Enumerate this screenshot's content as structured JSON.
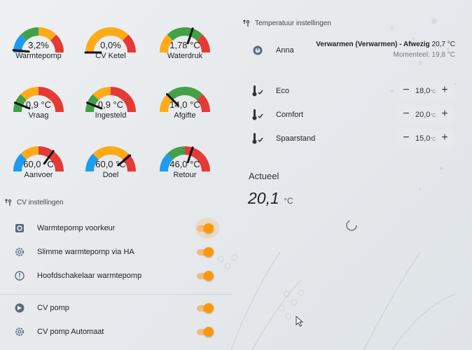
{
  "colors": {
    "green": "#43a047",
    "orange": "#ffab19",
    "red": "#e53935",
    "blue": "#1e9bef",
    "accent": "#ff9800"
  },
  "gauges": [
    {
      "value": "3,2%",
      "label": "Warmtepomp",
      "level": 0.03,
      "segments": [
        "blue",
        "green",
        "orange",
        "red"
      ]
    },
    {
      "value": "0,0%",
      "label": "CV Ketel",
      "level": 0.0,
      "segments": [
        "orange",
        "orange",
        "orange",
        "red"
      ]
    },
    {
      "value": "1,78 °C",
      "label": "Waterdruk",
      "level": 0.6,
      "segments": [
        "orange",
        "green",
        "green",
        "red"
      ]
    },
    {
      "value": "0,9 °C",
      "label": "Vraag",
      "level": 0.12,
      "segments": [
        "green",
        "orange",
        "red",
        "red"
      ]
    },
    {
      "value": "0,9 °C",
      "label": "Ingesteld",
      "level": 0.12,
      "segments": [
        "green",
        "orange",
        "red",
        "red"
      ]
    },
    {
      "value": "14,0 °C",
      "label": "Afgifte",
      "level": 0.25,
      "segments": [
        "orange",
        "green",
        "green",
        "red"
      ]
    },
    {
      "value": "60,0 °C",
      "label": "Aanvoer",
      "level": 0.7,
      "segments": [
        "blue",
        "orange",
        "red",
        "red"
      ]
    },
    {
      "value": "60,0 °C",
      "label": "Doel",
      "level": 0.78,
      "segments": [
        "blue",
        "orange",
        "orange",
        "red"
      ]
    },
    {
      "value": "46,0 °C",
      "label": "Retour",
      "level": 0.6,
      "segments": [
        "blue",
        "green",
        "red",
        "red"
      ]
    }
  ],
  "cv_section": {
    "title": "CV instellingen",
    "icon": "wrench-icon"
  },
  "cv_items": [
    {
      "label": "Warmtepomp voorkeur",
      "icon": "settings-box-icon",
      "on": true
    },
    {
      "label": "Slimme warmtepomp via HA",
      "icon": "gear-icon",
      "on": true
    },
    {
      "label": "Hoofdschakelaar warmtepomp",
      "icon": "info-circle-icon",
      "on": true
    },
    {
      "label": "CV pomp",
      "icon": "pump-icon",
      "on": true
    },
    {
      "label": "CV pomp Automaat",
      "icon": "gear-icon",
      "on": true
    }
  ],
  "temp_section": {
    "title": "Temperatuur instellingen",
    "icon": "wrench-icon"
  },
  "anna": {
    "name": "Anna",
    "status": "Verwarmen (Verwarmen) - Afwezig",
    "status_value": "20,7 °C",
    "current": "Momenteel: 19,8 °C"
  },
  "presets": [
    {
      "label": "Eco",
      "value": "18,0",
      "unit": "°C"
    },
    {
      "label": "Comfort",
      "value": "20,0",
      "unit": "°C"
    },
    {
      "label": "Spaarstand",
      "value": "15,0",
      "unit": "°C"
    }
  ],
  "actueel": {
    "label": "Actueel",
    "value": "20,1",
    "unit": "°C"
  }
}
